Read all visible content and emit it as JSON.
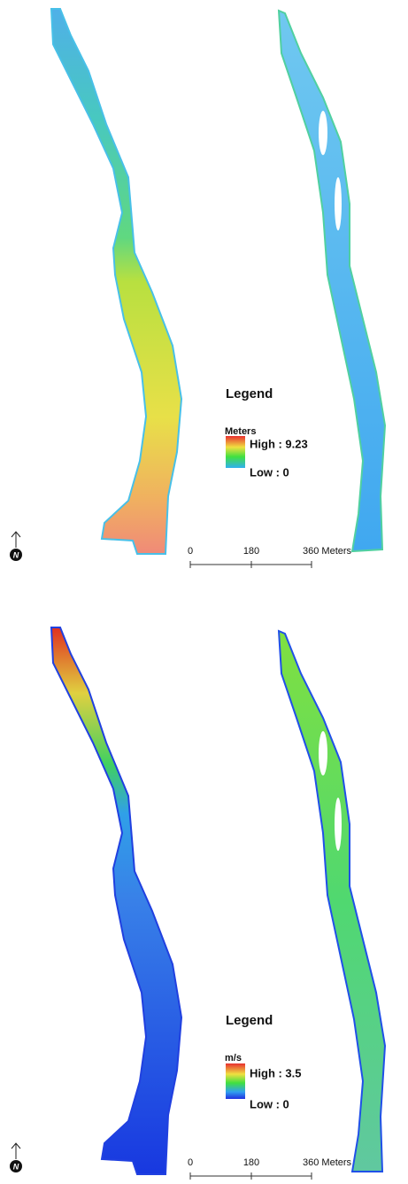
{
  "panels": [
    {
      "legend_title": "Legend",
      "unit": "Meters",
      "high_label": "High : 9.23",
      "low_label": "Low : 0",
      "scale_labels": [
        "0",
        "180",
        "360 Meters"
      ],
      "north": "N"
    },
    {
      "legend_title": "Legend",
      "unit": "m/s",
      "high_label": "High : 3.5",
      "low_label": "Low : 0",
      "scale_labels": [
        "0",
        "180",
        "360 Meters"
      ],
      "north": "N"
    }
  ]
}
